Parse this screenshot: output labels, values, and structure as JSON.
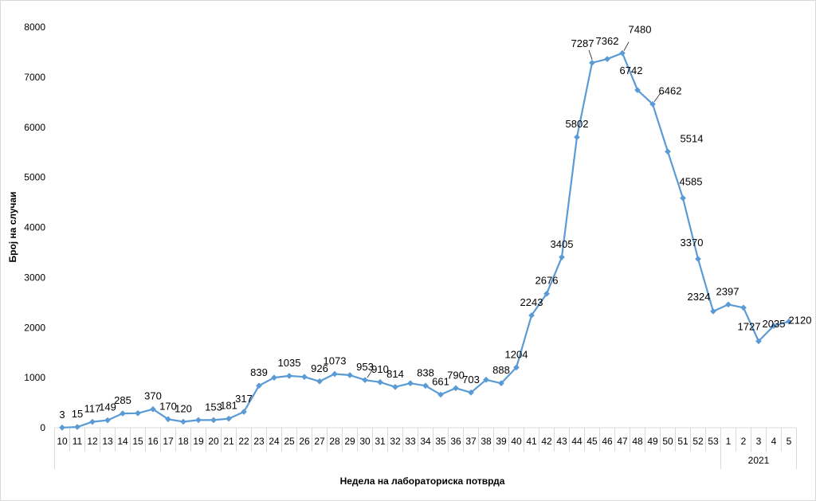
{
  "chart_data": {
    "type": "line",
    "xlabel": "Недела на лабораториска потврда",
    "ylabel": "Број на случаи",
    "ylim": [
      0,
      8000
    ],
    "yticks": [
      0,
      1000,
      2000,
      3000,
      4000,
      5000,
      6000,
      7000,
      8000
    ],
    "grid": false,
    "legend": "none",
    "color": "#5b9bd5",
    "year_group_label": "2021",
    "categories": [
      "10",
      "11",
      "12",
      "13",
      "14",
      "15",
      "16",
      "17",
      "18",
      "19",
      "20",
      "21",
      "22",
      "23",
      "24",
      "25",
      "26",
      "27",
      "28",
      "29",
      "30",
      "31",
      "32",
      "33",
      "34",
      "35",
      "36",
      "37",
      "38",
      "39",
      "40",
      "41",
      "42",
      "43",
      "44",
      "45",
      "46",
      "47",
      "48",
      "49",
      "50",
      "51",
      "52",
      "53",
      "1",
      "2",
      "3",
      "4",
      "5"
    ],
    "series": [
      {
        "values": [
          3,
          15,
          117,
          149,
          285,
          290,
          370,
          170,
          120,
          153,
          153,
          181,
          317,
          839,
          1000,
          1035,
          1015,
          926,
          1073,
          1050,
          953,
          910,
          814,
          888,
          838,
          661,
          790,
          703,
          958,
          888,
          1204,
          2243,
          2676,
          3405,
          5802,
          7287,
          7362,
          7480,
          6742,
          6462,
          5514,
          4585,
          3370,
          2324,
          2460,
          2397,
          1727,
          2035,
          2120
        ],
        "labels": [
          "3",
          "15",
          "117",
          "149",
          "285",
          "",
          "370",
          "170",
          "120",
          "",
          "153",
          "181",
          "317",
          "839",
          "",
          "1035",
          "",
          "926",
          "1073",
          "",
          "953",
          "910",
          "814",
          "",
          "838",
          "661",
          "790",
          "703",
          "",
          "888",
          "1204",
          "2243",
          "2676",
          "3405",
          "5802",
          "7287",
          "7362",
          "7480",
          "6742",
          "6462",
          "5514",
          "4585",
          "3370",
          "2324",
          "",
          "2397",
          "1727",
          "2035",
          "2120"
        ]
      }
    ]
  }
}
